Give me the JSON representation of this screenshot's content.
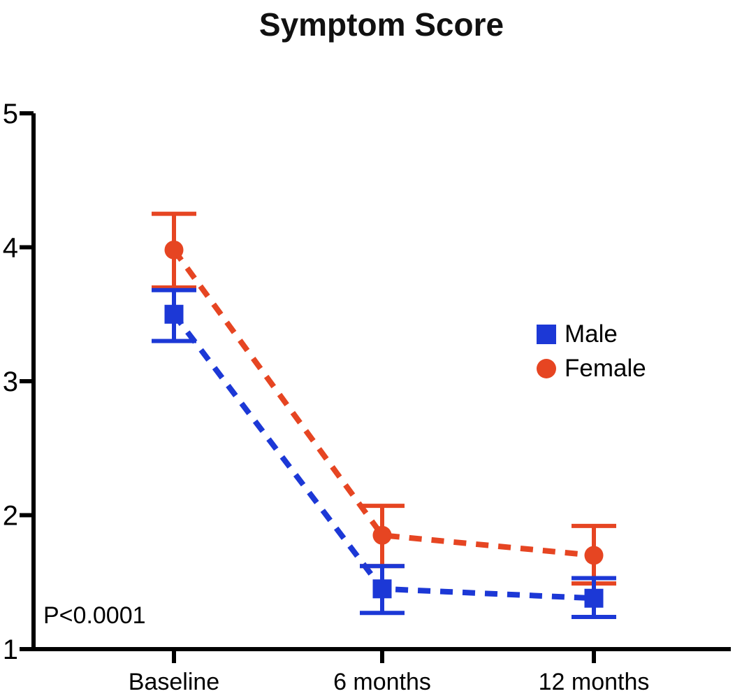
{
  "chart_data": {
    "type": "line",
    "title": "Symptom Score",
    "x_categories": [
      "Baseline",
      "6 months",
      "12 months"
    ],
    "xlabel": "",
    "ylabel": "",
    "ylim": [
      1,
      5
    ],
    "yticks": [
      1,
      2,
      3,
      4,
      5
    ],
    "grid": false,
    "line_style": "dashed",
    "error_bars": true,
    "legend_position": "center-right",
    "annotation": "P<0.0001",
    "axis_color": "#000000",
    "series": [
      {
        "name": "Male",
        "marker": "square",
        "color": "#1C38D6",
        "values": [
          3.5,
          1.45,
          1.38
        ],
        "error_upper": [
          3.68,
          1.62,
          1.53
        ],
        "error_lower": [
          3.3,
          1.27,
          1.24
        ]
      },
      {
        "name": "Female",
        "marker": "circle",
        "color": "#E64522",
        "values": [
          3.98,
          1.85,
          1.7
        ],
        "error_upper": [
          4.25,
          2.07,
          1.92
        ],
        "error_lower": [
          3.7,
          1.62,
          1.49
        ]
      }
    ]
  }
}
